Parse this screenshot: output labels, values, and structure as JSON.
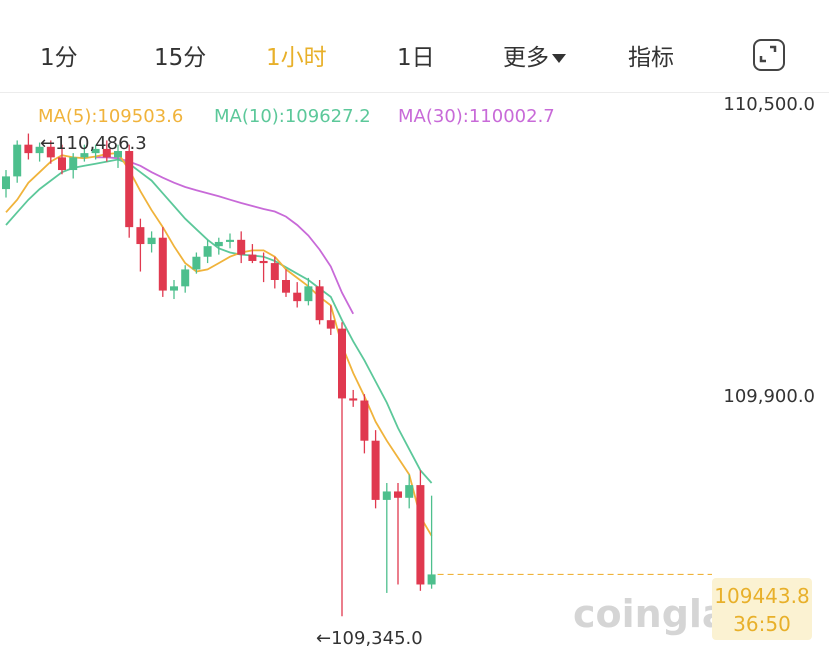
{
  "tabs": [
    {
      "label": "1分",
      "active": false
    },
    {
      "label": "15分",
      "active": false
    },
    {
      "label": "1小时",
      "active": true
    },
    {
      "label": "1日",
      "active": false
    },
    {
      "label": "更多",
      "active": false
    },
    {
      "label": "指标",
      "active": false
    }
  ],
  "ma_legend": {
    "ma5": "MA(5):109503.6",
    "ma10": "MA(10):109627.2",
    "ma30": "MA(30):110002.7"
  },
  "colors": {
    "up": "#4dbf8d",
    "down": "#e0394f",
    "ma5": "#f0b33b",
    "ma10": "#5cc89a",
    "ma30": "#c86ad8",
    "active_tab": "#e8b02a"
  },
  "icons": {
    "more_caret": "caret-down-icon",
    "expand": "fullscreen-icon"
  },
  "current_price": {
    "price": "109443.8",
    "countdown": "36:50"
  },
  "watermark": "coinglass",
  "chart_data": {
    "type": "candlestick",
    "y_axis_labels": [
      "110,500.0",
      "109,900.0"
    ],
    "ylim": [
      109310,
      110555
    ],
    "high_marker": "110,486.3",
    "low_marker": "109,345.0",
    "candles": [
      {
        "o": 110355,
        "h": 110400,
        "l": 110335,
        "c": 110385
      },
      {
        "o": 110385,
        "h": 110470,
        "l": 110370,
        "c": 110460
      },
      {
        "o": 110460,
        "h": 110486.3,
        "l": 110425,
        "c": 110440
      },
      {
        "o": 110440,
        "h": 110465,
        "l": 110420,
        "c": 110455
      },
      {
        "o": 110455,
        "h": 110470,
        "l": 110415,
        "c": 110430
      },
      {
        "o": 110430,
        "h": 110460,
        "l": 110390,
        "c": 110400
      },
      {
        "o": 110400,
        "h": 110440,
        "l": 110380,
        "c": 110430
      },
      {
        "o": 110430,
        "h": 110460,
        "l": 110420,
        "c": 110440
      },
      {
        "o": 110440,
        "h": 110460,
        "l": 110425,
        "c": 110450
      },
      {
        "o": 110450,
        "h": 110470,
        "l": 110420,
        "c": 110430
      },
      {
        "o": 110430,
        "h": 110460,
        "l": 110405,
        "c": 110445
      },
      {
        "o": 110445,
        "h": 110460,
        "l": 110240,
        "c": 110265
      },
      {
        "o": 110265,
        "h": 110285,
        "l": 110160,
        "c": 110225
      },
      {
        "o": 110225,
        "h": 110255,
        "l": 110205,
        "c": 110240
      },
      {
        "o": 110240,
        "h": 110265,
        "l": 110100,
        "c": 110115
      },
      {
        "o": 110115,
        "h": 110140,
        "l": 110095,
        "c": 110125
      },
      {
        "o": 110125,
        "h": 110175,
        "l": 110110,
        "c": 110165
      },
      {
        "o": 110165,
        "h": 110205,
        "l": 110155,
        "c": 110195
      },
      {
        "o": 110195,
        "h": 110235,
        "l": 110180,
        "c": 110220
      },
      {
        "o": 110220,
        "h": 110240,
        "l": 110200,
        "c": 110230
      },
      {
        "o": 110230,
        "h": 110250,
        "l": 110215,
        "c": 110235
      },
      {
        "o": 110235,
        "h": 110255,
        "l": 110180,
        "c": 110200
      },
      {
        "o": 110200,
        "h": 110225,
        "l": 110180,
        "c": 110185
      },
      {
        "o": 110185,
        "h": 110205,
        "l": 110135,
        "c": 110180
      },
      {
        "o": 110180,
        "h": 110195,
        "l": 110120,
        "c": 110140
      },
      {
        "o": 110140,
        "h": 110165,
        "l": 110100,
        "c": 110110
      },
      {
        "o": 110110,
        "h": 110135,
        "l": 110075,
        "c": 110090
      },
      {
        "o": 110090,
        "h": 110145,
        "l": 110080,
        "c": 110125
      },
      {
        "o": 110125,
        "h": 110140,
        "l": 110035,
        "c": 110045
      },
      {
        "o": 110045,
        "h": 110080,
        "l": 110010,
        "c": 110025
      },
      {
        "o": 110025,
        "h": 110040,
        "l": 109345,
        "c": 109860
      },
      {
        "o": 109860,
        "h": 109880,
        "l": 109840,
        "c": 109855
      },
      {
        "o": 109855,
        "h": 109870,
        "l": 109730,
        "c": 109760
      },
      {
        "o": 109760,
        "h": 109785,
        "l": 109600,
        "c": 109620
      },
      {
        "o": 109620,
        "h": 109660,
        "l": 109400,
        "c": 109640
      },
      {
        "o": 109640,
        "h": 109660,
        "l": 109420,
        "c": 109625
      },
      {
        "o": 109625,
        "h": 109680,
        "l": 109600,
        "c": 109655
      },
      {
        "o": 109655,
        "h": 109690,
        "l": 109405,
        "c": 109420
      },
      {
        "o": 109420,
        "h": 109630,
        "l": 109410,
        "c": 109443.8
      }
    ],
    "ma5": [
      110300,
      110330,
      110370,
      110395,
      110420,
      110435,
      110430,
      110428,
      110432,
      110438,
      110440,
      110400,
      110350,
      110305,
      110265,
      110220,
      110180,
      110160,
      110165,
      110180,
      110195,
      110205,
      110210,
      110210,
      110195,
      110165,
      110145,
      110125,
      110100,
      110080,
      109985,
      109920,
      109865,
      109805,
      109760,
      109720,
      109680,
      109580,
      109535
    ],
    "ma10": [
      110270,
      110300,
      110330,
      110355,
      110375,
      110395,
      110405,
      110410,
      110415,
      110420,
      110425,
      110415,
      110395,
      110375,
      110345,
      110315,
      110285,
      110260,
      110235,
      110215,
      110205,
      110200,
      110198,
      110195,
      110185,
      110170,
      110155,
      110140,
      110120,
      110100,
      110045,
      109995,
      109950,
      109900,
      109850,
      109790,
      109740,
      109690,
      109660
    ],
    "ma30": [
      null,
      null,
      null,
      null,
      null,
      null,
      null,
      null,
      110430,
      110430,
      110428,
      110420,
      110410,
      110395,
      110382,
      110370,
      110360,
      110352,
      110345,
      110338,
      110330,
      110322,
      110315,
      110308,
      110302,
      110290,
      110270,
      110245,
      110212,
      110172,
      110110,
      110060
    ]
  }
}
